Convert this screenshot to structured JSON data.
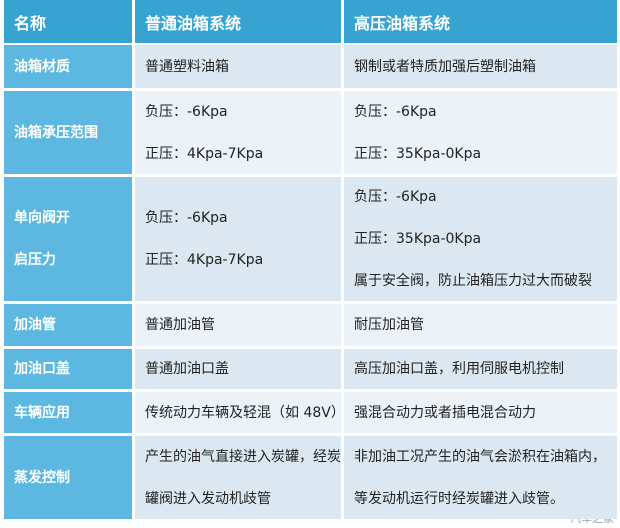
{
  "table": {
    "header": [
      "名称",
      "普通油箱系统",
      "高压油箱系统"
    ],
    "rows": [
      [
        [
          "油箱材质"
        ],
        [
          "普通塑料油箱"
        ],
        [
          "钢制或者特质加强后塑制油箱"
        ]
      ],
      [
        [
          "油箱承压范围"
        ],
        [
          "负压：-6Kpa",
          "正压：4Kpa-7Kpa"
        ],
        [
          "负压：-6Kpa",
          "正压：35Kpa-0Kpa"
        ]
      ],
      [
        [
          "单向阀开",
          "启压力"
        ],
        [
          "负压：-6Kpa",
          "正压：4Kpa-7Kpa"
        ],
        [
          "负压：-6Kpa",
          "正压：35Kpa-0Kpa",
          "属于安全阀，防止油箱压力过大而破裂"
        ]
      ],
      [
        [
          "加油管"
        ],
        [
          "普通加油管"
        ],
        [
          "耐压加油管"
        ]
      ],
      [
        [
          "加油口盖"
        ],
        [
          "普通加油口盖"
        ],
        [
          "高压加油口盖，利用伺服电机控制"
        ]
      ],
      [
        [
          "车辆应用"
        ],
        [
          "传统动力车辆及轻混（如 48V）"
        ],
        [
          "强混合动力或者插电混合动力"
        ]
      ],
      [
        [
          "蒸发控制"
        ],
        [
          "产生的油气直接进入炭罐，经炭",
          "罐阀进入发动机歧管"
        ],
        [
          "非加油工况产生的油气会淤积在油箱内，",
          "等发动机运行时经炭罐进入歧管。"
        ]
      ]
    ]
  },
  "watermark": "汽车之家"
}
